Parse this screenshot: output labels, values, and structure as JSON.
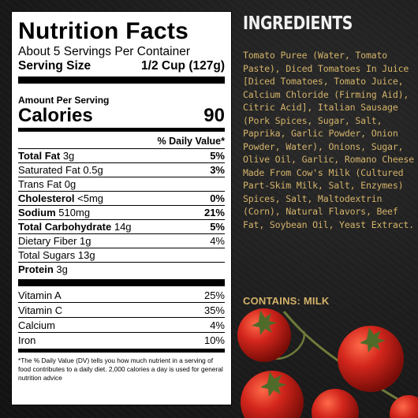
{
  "nutrition": {
    "title": "Nutrition Facts",
    "servings_per_container": "About 5 Servings Per Container",
    "serving_size_label": "Serving Size",
    "serving_size_value": "1/2 Cup (127g)",
    "amount_per_serving": "Amount Per Serving",
    "calories_label": "Calories",
    "calories_value": "90",
    "dv_header": "% Daily Value*",
    "nutrients": [
      {
        "label": "Total Fat",
        "amount": "3g",
        "dv": "5%"
      },
      {
        "label": "Saturated Fat",
        "amount": "0.5g",
        "dv": "3%"
      },
      {
        "label": "Trans Fat",
        "amount": "0g"
      },
      {
        "label": "Cholesterol",
        "amount": "<5mg",
        "dv": "0%"
      },
      {
        "label": "Sodium",
        "amount": "510mg",
        "dv": "21%"
      },
      {
        "label": "Total Carbohydrate",
        "amount": "14g",
        "dv": "5%"
      },
      {
        "label": "Dietary Fiber",
        "amount": "1g",
        "dv": "4%"
      },
      {
        "label": "Total Sugars",
        "amount": "13g"
      },
      {
        "label": "Protein",
        "amount": "3g"
      }
    ],
    "vitamins": [
      {
        "label": "Vitamin A",
        "dv": "25%"
      },
      {
        "label": "Vitamin C",
        "dv": "35%"
      },
      {
        "label": "Calcium",
        "dv": "4%"
      },
      {
        "label": "Iron",
        "dv": "10%"
      }
    ],
    "footnote": "*The % Daily Value (DV) tells you how much nutrient in a serving of food contributes to a daily diet. 2,000 calories a day is used for general nutrition advice"
  },
  "ingredients": {
    "title": "INGREDIENTS",
    "text": "Tomato Puree (Water, Tomato Paste), Diced Tomatoes In Juice [Diced Tomatoes, Tomato Juice, Calcium Chloride (Firming Aid), Citric Acid], Italian Sausage (Pork Spices, Sugar, Salt, Paprika, Garlic Powder, Onion Powder, Water), Onions, Sugar, Olive Oil, Garlic, Romano Cheese Made From Cow's Milk (Cultured Part-Skim Milk, Salt, Enzymes) Spices, Salt, Maltodextrin (Corn), Natural Flavors, Beef Fat, Soybean Oil, Yeast Extract.",
    "contains": "CONTAINS: MILK"
  },
  "colors": {
    "background": "#1c1c1c",
    "ingredient_text": "#d4b36a",
    "tomato": "#c8201a"
  }
}
